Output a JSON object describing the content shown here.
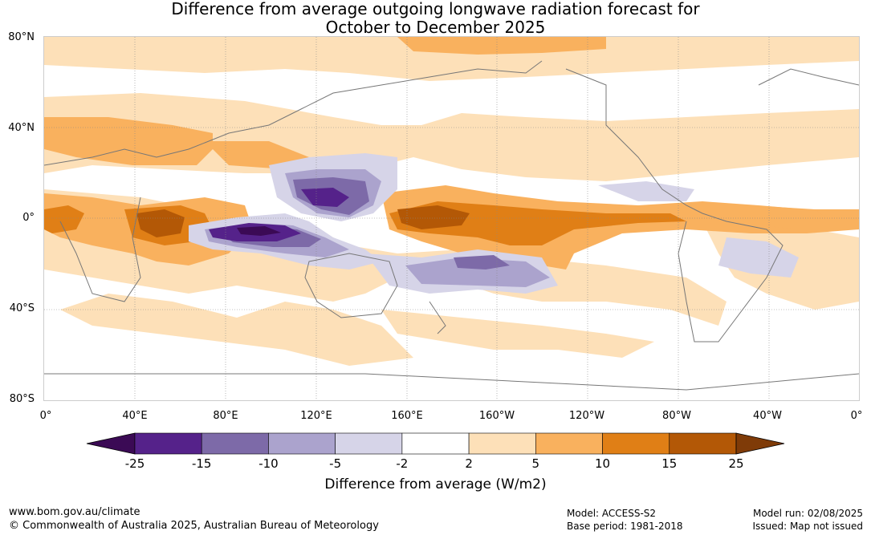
{
  "title_line1": "Difference from average outgoing longwave radiation forecast for",
  "title_line2": "October to December 2025",
  "lat_labels": [
    "80°N",
    "40°N",
    "0°",
    "40°S",
    "80°S"
  ],
  "lon_labels": [
    "0°",
    "40°E",
    "80°E",
    "120°E",
    "160°E",
    "160°W",
    "120°W",
    "80°W",
    "40°W",
    "0°"
  ],
  "legend": {
    "title": "Difference from average (W/m2)",
    "ticks": [
      "-25",
      "-15",
      "-10",
      "-5",
      "-2",
      "2",
      "5",
      "10",
      "15",
      "25"
    ],
    "colors": [
      "#3b0a55",
      "#55228a",
      "#7d6aa8",
      "#aba3cd",
      "#d6d4e8",
      "#ffffff",
      "#fde0b8",
      "#f9b15e",
      "#e07f16",
      "#b35806",
      "#7f3b08"
    ]
  },
  "footer": {
    "website": "www.bom.gov.au/climate",
    "copyright": "© Commonwealth of Australia 2025, Australian Bureau of Meteorology",
    "model": "Model: ACCESS-S2",
    "base_period": "Base period: 1981-2018",
    "model_run": "Model run: 02/08/2025",
    "issued": "Issued: Map not issued"
  }
}
